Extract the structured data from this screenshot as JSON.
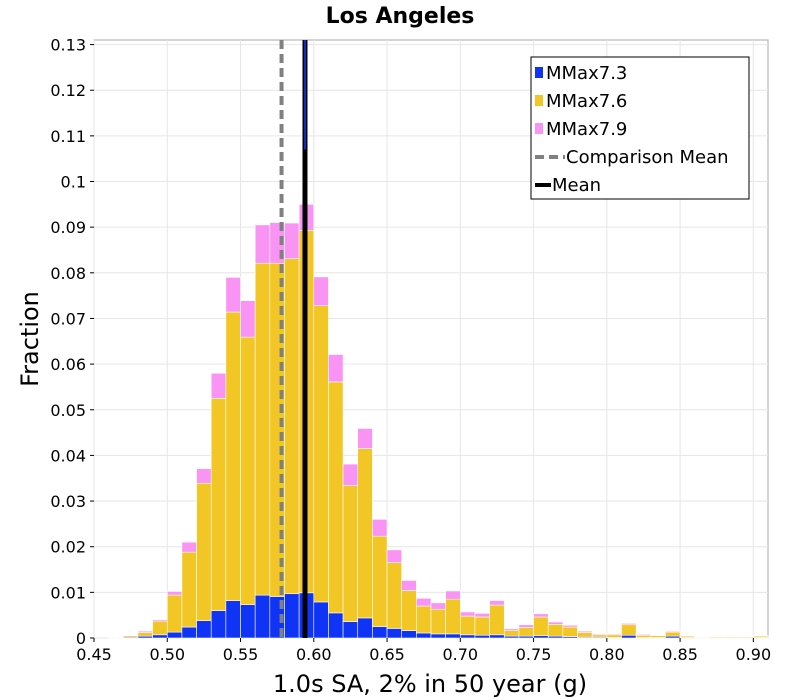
{
  "chart_data": {
    "type": "bar",
    "stacked": true,
    "title": "Los Angeles",
    "xlabel": "1.0s SA, 2% in 50 year (g)",
    "ylabel": "Fraction",
    "xlim": [
      0.45,
      0.91
    ],
    "ylim": [
      0,
      0.131
    ],
    "bin_width": 0.01,
    "grid": true,
    "legend_position": "top-right",
    "x_ticks": [
      "0.45",
      "0.50",
      "0.55",
      "0.60",
      "0.65",
      "0.70",
      "0.75",
      "0.80",
      "0.85",
      "0.90"
    ],
    "y_ticks": [
      "0",
      "0.01",
      "0.02",
      "0.03",
      "0.04",
      "0.05",
      "0.06",
      "0.07",
      "0.08",
      "0.09",
      "0.1",
      "0.11",
      "0.12",
      "0.13"
    ],
    "x": [
      0.465,
      0.475,
      0.485,
      0.495,
      0.505,
      0.515,
      0.525,
      0.535,
      0.545,
      0.555,
      0.565,
      0.575,
      0.585,
      0.595,
      0.605,
      0.615,
      0.625,
      0.635,
      0.645,
      0.655,
      0.665,
      0.675,
      0.685,
      0.695,
      0.705,
      0.715,
      0.725,
      0.735,
      0.745,
      0.755,
      0.765,
      0.775,
      0.785,
      0.795,
      0.805,
      0.815,
      0.825,
      0.835,
      0.845,
      0.855,
      0.865,
      0.875,
      0.885,
      0.895,
      0.905
    ],
    "series": [
      {
        "name": "MMax7.3",
        "color": "#1034f5",
        "values": [
          0.0001,
          0.0002,
          0.0004,
          0.0007,
          0.0013,
          0.0024,
          0.0038,
          0.006,
          0.0082,
          0.0073,
          0.0094,
          0.0091,
          0.0097,
          0.0099,
          0.0079,
          0.0055,
          0.0036,
          0.0044,
          0.0025,
          0.0021,
          0.0016,
          0.0011,
          0.0009,
          0.0009,
          0.0007,
          0.0006,
          0.0007,
          0.0004,
          0.0004,
          0.0005,
          0.0004,
          0.0003,
          0.0002,
          0.0002,
          0.0001,
          0.0006,
          0.0001,
          0.0001,
          0.0004,
          0.0001,
          0.0001,
          0.0001,
          0.0001,
          0.0001,
          0.0001
        ]
      },
      {
        "name": "MMax7.6",
        "color": "#f2c624",
        "values": [
          0.0001,
          0.0003,
          0.0008,
          0.003,
          0.0081,
          0.0164,
          0.0301,
          0.0465,
          0.0632,
          0.0586,
          0.0727,
          0.073,
          0.0734,
          0.0794,
          0.0649,
          0.0506,
          0.0298,
          0.0371,
          0.0198,
          0.0144,
          0.0088,
          0.0059,
          0.0054,
          0.0076,
          0.0041,
          0.004,
          0.0065,
          0.0012,
          0.0019,
          0.0041,
          0.0026,
          0.0021,
          0.001,
          0.0005,
          0.0006,
          0.0023,
          0.0005,
          0.0004,
          0.0009,
          0.0003,
          0.0001,
          0.0002,
          0.0002,
          0.0002,
          0.0003
        ]
      },
      {
        "name": "MMax7.9",
        "color": "#f994f4",
        "values": [
          0.0,
          0.0001,
          0.0003,
          0.0003,
          0.0008,
          0.0022,
          0.0032,
          0.0055,
          0.0076,
          0.008,
          0.0084,
          0.0089,
          0.0078,
          0.0057,
          0.0063,
          0.006,
          0.0047,
          0.0044,
          0.0037,
          0.0028,
          0.0022,
          0.0017,
          0.0014,
          0.0018,
          0.0009,
          0.0008,
          0.001,
          0.0004,
          0.0006,
          0.0007,
          0.0005,
          0.0004,
          0.0003,
          0.0002,
          0.0002,
          0.0003,
          0.0002,
          0.0001,
          0.0002,
          0.0001,
          0.0001,
          0.0001,
          0.0001,
          0.0001,
          0.0001
        ]
      }
    ],
    "lines": [
      {
        "name": "Comparison Mean",
        "x": 0.578,
        "style": "dashed",
        "color": "#808080"
      },
      {
        "name": "Mean",
        "x": 0.594,
        "style": "solid",
        "color": "#000000"
      }
    ],
    "mean_marker_color": "#1034f5"
  }
}
